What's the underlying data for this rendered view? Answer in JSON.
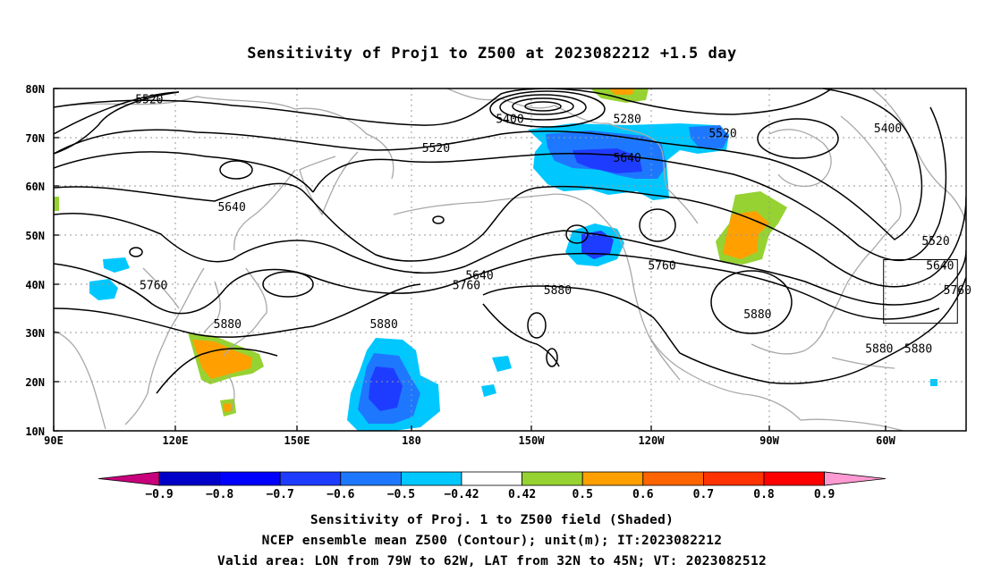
{
  "title": "Sensitivity of Proj1 to Z500 at 2023082212 +1.5 day",
  "axes": {
    "lat_ticks": [
      "80N",
      "70N",
      "60N",
      "50N",
      "40N",
      "30N",
      "20N",
      "10N"
    ],
    "lon_ticks": [
      "90E",
      "120E",
      "150E",
      "180",
      "150W",
      "120W",
      "90W",
      "60W"
    ]
  },
  "contour_labels": [
    {
      "text": "5520",
      "lon": 112,
      "lat": 77
    },
    {
      "text": "5400",
      "lon": 195,
      "lat": 73
    },
    {
      "text": "5280",
      "lon": 222,
      "lat": 73
    },
    {
      "text": "5520",
      "lon": 178,
      "lat": 67
    },
    {
      "text": "5640",
      "lon": 222,
      "lat": 65
    },
    {
      "text": "5520",
      "lon": 244,
      "lat": 70
    },
    {
      "text": "5400",
      "lon": 282,
      "lat": 71
    },
    {
      "text": "5640",
      "lon": 131,
      "lat": 55
    },
    {
      "text": "5640",
      "lon": 188,
      "lat": 41
    },
    {
      "text": "5760",
      "lon": 230,
      "lat": 43
    },
    {
      "text": "5880",
      "lon": 206,
      "lat": 38
    },
    {
      "text": "5760",
      "lon": 113,
      "lat": 39
    },
    {
      "text": "5760",
      "lon": 185,
      "lat": 39
    },
    {
      "text": "5880",
      "lon": 130,
      "lat": 31
    },
    {
      "text": "5880",
      "lon": 166,
      "lat": 31
    },
    {
      "text": "5880",
      "lon": 252,
      "lat": 33
    },
    {
      "text": "5520",
      "lon": 293,
      "lat": 48
    },
    {
      "text": "5640",
      "lon": 294,
      "lat": 43
    },
    {
      "text": "5760",
      "lon": 298,
      "lat": 38
    },
    {
      "text": "5880",
      "lon": 280,
      "lat": 26
    },
    {
      "text": "5880",
      "lon": 289,
      "lat": 26
    }
  ],
  "valid_box": {
    "lon_min": 281,
    "lon_max": 298,
    "lat_min": 32,
    "lat_max": 45
  },
  "colorbar": {
    "labels": [
      "-0.9",
      "-0.8",
      "-0.7",
      "-0.6",
      "-0.5",
      "-0.42",
      "0.42",
      "0.5",
      "0.6",
      "0.7",
      "0.8",
      "0.9"
    ],
    "colors": [
      "#c8007c",
      "#0000c8",
      "#0000ff",
      "#1e3cff",
      "#1e78ff",
      "#00c8ff",
      "#ffffff",
      "#96d232",
      "#ffa000",
      "#ff6400",
      "#ff3200",
      "#ff0000",
      "#ff9ad2"
    ]
  },
  "captions": [
    "Sensitivity of Proj. 1 to Z500 field (Shaded)",
    "NCEP ensemble mean Z500 (Contour); unit(m); IT:2023082212",
    "Valid area: LON from 79W to 62W, LAT from 32N to 45N; VT: 2023082512"
  ]
}
